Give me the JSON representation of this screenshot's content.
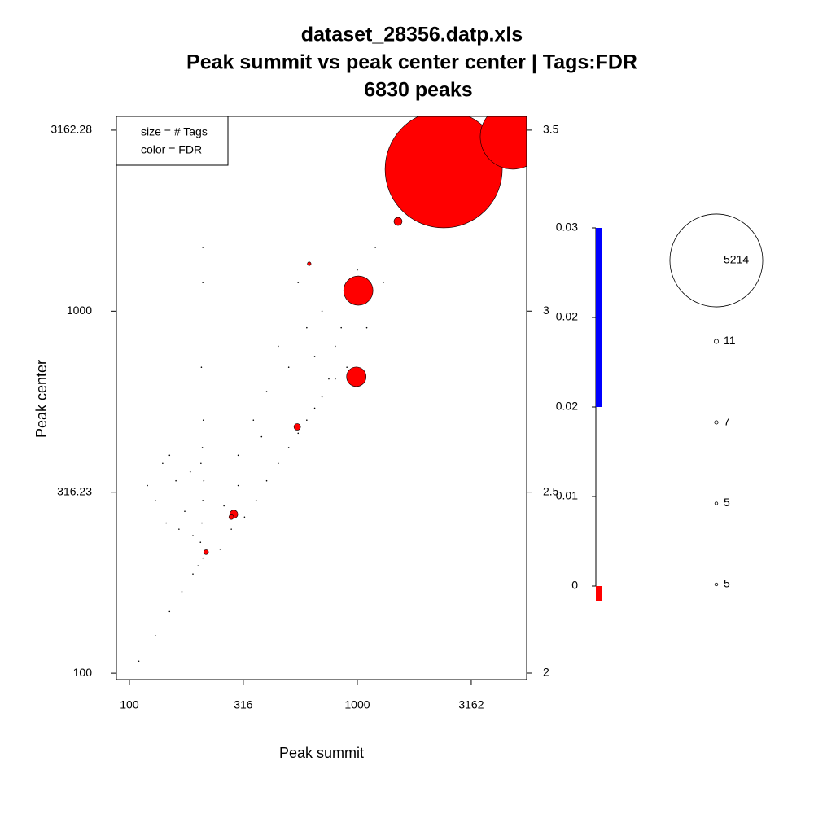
{
  "chart_data": {
    "type": "scatter",
    "title": "dataset_28356.datp.xls",
    "subtitle": "Peak summit vs peak center center | Tags:FDR",
    "annotation": "6830 peaks",
    "x_label": "Peak summit",
    "y_label": "Peak center",
    "log_x": true,
    "log_y": true,
    "xlim": [
      87.7,
      5534
    ],
    "ylim": [
      96,
      3452
    ],
    "xticks": [
      100,
      316,
      1000,
      3162
    ],
    "yticks": [
      100,
      316.23,
      1000,
      3162.28
    ],
    "y2lim": [
      1.982,
      3.538
    ],
    "y2ticks": [
      2,
      2.5,
      3,
      3.5
    ],
    "legend_text": [
      "size = # Tags",
      "color = FDR"
    ],
    "legend_corner": "top-left",
    "series": [
      {
        "color": "#000000",
        "x": [
          110,
          130,
          150,
          170,
          190,
          200,
          210,
          205,
          208,
          210,
          212,
          206,
          209,
          211,
          207,
          210,
          210,
          130,
          145,
          160,
          175,
          185,
          150,
          120,
          190,
          165,
          140,
          250,
          280,
          320,
          360,
          400,
          450,
          500,
          550,
          600,
          650,
          700,
          800,
          300,
          350,
          400,
          500,
          600,
          700,
          800,
          900,
          1000,
          450,
          550,
          650,
          750,
          850,
          300,
          260,
          380,
          1200,
          1500,
          1700,
          1300,
          900,
          1100
        ],
        "y": [
          108,
          127,
          148,
          168,
          188,
          198,
          208,
          230,
          260,
          300,
          340,
          380,
          420,
          500,
          700,
          1500,
          1200,
          300,
          260,
          340,
          280,
          360,
          400,
          330,
          240,
          250,
          380,
          220,
          250,
          270,
          300,
          340,
          380,
          420,
          460,
          500,
          540,
          580,
          650,
          400,
          500,
          600,
          700,
          900,
          1000,
          800,
          1100,
          1300,
          800,
          1200,
          750,
          650,
          900,
          330,
          290,
          450,
          1500,
          2000,
          1900,
          1200,
          700,
          900
        ],
        "size": [
          1,
          1,
          1,
          1,
          1,
          1,
          1,
          1,
          1,
          1,
          1,
          1,
          1,
          1,
          1,
          1,
          1,
          1,
          1,
          1,
          1,
          1,
          1,
          1,
          1,
          1,
          1,
          1,
          1,
          1,
          1,
          1,
          1,
          1,
          1,
          1,
          1,
          1,
          1,
          1,
          1,
          1,
          1,
          1,
          1,
          1,
          1,
          1,
          1,
          1,
          1,
          1,
          1,
          1,
          1,
          1,
          1,
          1,
          1,
          1,
          1,
          1
        ]
      },
      {
        "color": "#ff0000",
        "x": [
          2393,
          4810,
          1010,
          990,
          1509,
          545,
          287,
          217,
          615,
          280
        ],
        "y": [
          2466,
          3034,
          1140,
          659,
          1770,
          479,
          275,
          216,
          1352,
          270
        ],
        "size": [
          8306,
          2564,
          519,
          231,
          40,
          26,
          40,
          14,
          8,
          14
        ]
      }
    ],
    "colorbar": {
      "lim": [
        0,
        0.03
      ],
      "ticks": [
        0.03,
        {
          "value": 0.0225,
          "label": "0.02"
        },
        {
          "value": 0.015,
          "label": "0.02"
        },
        {
          "value": 0.0075,
          "label": "0.01"
        },
        0
      ],
      "segments": [
        {
          "from": 0.015,
          "to": 0.03,
          "color": "#0000ff"
        },
        {
          "from": -0.00125,
          "to": 0,
          "color": "#ff0000"
        }
      ]
    },
    "size_legend": {
      "values": [
        5214,
        11,
        7,
        5,
        5
      ]
    }
  }
}
